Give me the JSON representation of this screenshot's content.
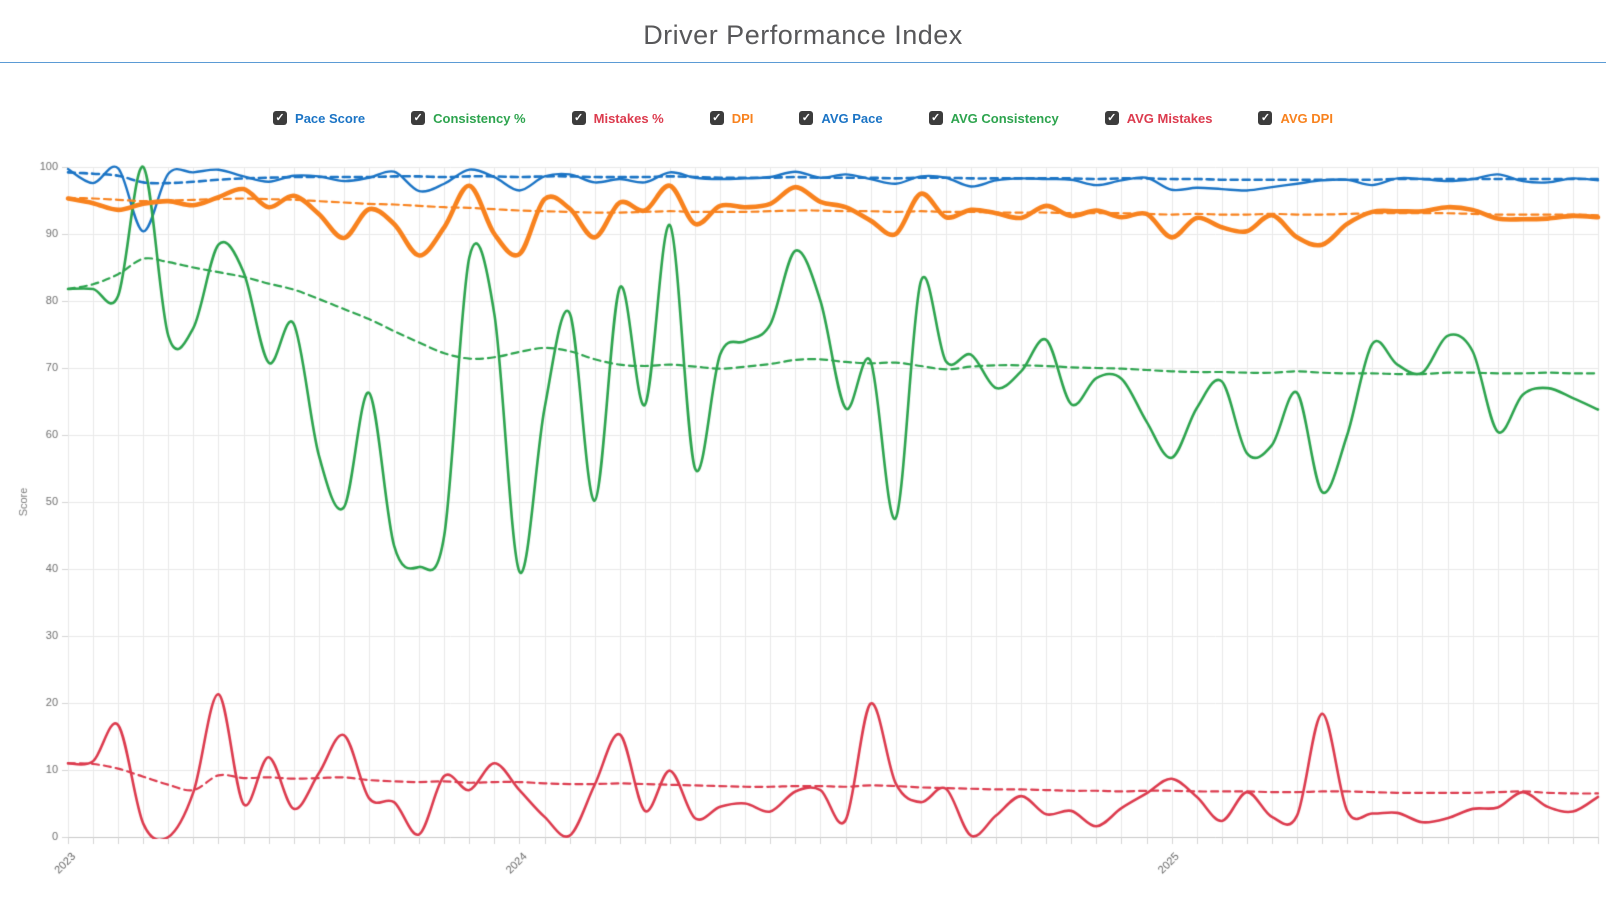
{
  "header": {
    "title": "Driver Performance Index"
  },
  "legend": {
    "items": [
      {
        "id": "pace-score",
        "label": "Pace Score",
        "checked": true
      },
      {
        "id": "consistency",
        "label": "Consistency %",
        "checked": true
      },
      {
        "id": "mistakes",
        "label": "Mistakes %",
        "checked": true
      },
      {
        "id": "dpi",
        "label": "DPI",
        "checked": true
      },
      {
        "id": "avg-pace",
        "label": "AVG Pace",
        "checked": true
      },
      {
        "id": "avg-consistency",
        "label": "AVG Consistency",
        "checked": true
      },
      {
        "id": "avg-mistakes",
        "label": "AVG Mistakes",
        "checked": true
      },
      {
        "id": "avg-dpi",
        "label": "AVG DPI",
        "checked": true
      }
    ],
    "checkmark": "✓"
  },
  "colors": {
    "blue": "#1b74c5",
    "green": "#2da44e",
    "red": "#dc3b4e",
    "orange": "#f8821e",
    "grid": "#e9e9e9",
    "axis_line": "#c8c8c8",
    "tick_mark": "#d5d5d5",
    "tick_text": "#707070",
    "axis_title": "#808080",
    "divider": "#5b9bd5",
    "checkbox_bg": "#3c3c3c",
    "title_text": "#58585a"
  },
  "y_axis": {
    "label": "Score",
    "ticks": [
      0,
      10,
      20,
      30,
      40,
      50,
      60,
      70,
      80,
      90,
      100
    ]
  },
  "x_axis": {
    "year_labels": [
      {
        "index": 0,
        "text": "2023"
      },
      {
        "index": 18,
        "text": "2024"
      },
      {
        "index": 44,
        "text": "2025"
      }
    ]
  },
  "chart_data": {
    "type": "line",
    "title": "Driver Performance Index",
    "xlabel": "",
    "ylabel": "Score",
    "ylim": [
      0,
      100
    ],
    "grid": true,
    "legend_position": "top",
    "n_points": 62,
    "x_tick_labels": {
      "0": "2023",
      "18": "2024",
      "44": "2025"
    },
    "series": [
      {
        "name": "Pace Score",
        "color": "#1b74c5",
        "style": "solid",
        "width": 2.4,
        "values": [
          99.7,
          97.6,
          99.8,
          90.4,
          99.0,
          99.2,
          99.6,
          98.6,
          97.8,
          98.7,
          98.6,
          97.9,
          98.4,
          99.3,
          96.4,
          97.5,
          99.6,
          98.5,
          96.5,
          98.6,
          98.9,
          97.7,
          98.2,
          97.7,
          99.2,
          98.4,
          98.2,
          98.3,
          98.5,
          99.3,
          98.4,
          98.9,
          98.2,
          97.5,
          98.6,
          98.4,
          97.1,
          98.0,
          98.3,
          98.2,
          98.1,
          97.3,
          98.0,
          98.4,
          96.6,
          96.9,
          96.7,
          96.5,
          97.0,
          97.5,
          98.0,
          98.1,
          97.3,
          98.3,
          98.2,
          97.9,
          98.2,
          98.9,
          97.9,
          97.7,
          98.3,
          98.0
        ]
      },
      {
        "name": "Consistency %",
        "color": "#2da44e",
        "style": "solid",
        "width": 2.6,
        "values": [
          81.8,
          81.8,
          80.8,
          100.0,
          74.8,
          76.0,
          88.4,
          84.3,
          70.8,
          76.6,
          57.0,
          49.2,
          66.3,
          43.5,
          40.3,
          45.0,
          86.5,
          78.0,
          39.6,
          64.0,
          78.2,
          50.2,
          82.0,
          64.5,
          91.3,
          55.0,
          72.0,
          74.0,
          76.5,
          87.5,
          80.0,
          64.0,
          71.0,
          47.6,
          82.9,
          71.0,
          72.0,
          67.0,
          69.5,
          74.2,
          64.6,
          68.5,
          68.4,
          62.0,
          56.6,
          64.0,
          68.0,
          57.3,
          58.5,
          66.3,
          51.5,
          60.0,
          73.6,
          70.5,
          69.3,
          74.8,
          72.5,
          60.5,
          66.0,
          67.0,
          65.5,
          63.8
        ]
      },
      {
        "name": "Mistakes %",
        "color": "#dc3b4e",
        "style": "solid",
        "width": 2.6,
        "values": [
          11.0,
          11.3,
          16.7,
          2.0,
          0.0,
          6.7,
          21.3,
          4.9,
          11.9,
          4.2,
          9.5,
          15.2,
          5.8,
          5.2,
          0.4,
          9.1,
          7.0,
          11.0,
          7.0,
          3.0,
          0.2,
          7.8,
          15.3,
          3.9,
          9.9,
          2.8,
          4.5,
          5.0,
          3.8,
          6.8,
          7.0,
          2.5,
          19.9,
          8.0,
          5.2,
          7.2,
          0.2,
          3.2,
          6.1,
          3.4,
          3.9,
          1.6,
          4.3,
          6.5,
          8.7,
          6.0,
          2.4,
          6.7,
          3.0,
          3.2,
          18.4,
          3.9,
          3.5,
          3.6,
          2.2,
          2.8,
          4.2,
          4.4,
          6.7,
          4.5,
          3.8,
          6.0
        ]
      },
      {
        "name": "DPI",
        "color": "#f8821e",
        "style": "solid",
        "width": 4.6,
        "values": [
          95.3,
          94.6,
          93.6,
          94.5,
          94.9,
          94.3,
          95.5,
          96.7,
          94.0,
          95.7,
          93.0,
          89.4,
          93.7,
          91.5,
          86.8,
          91.0,
          97.2,
          90.0,
          87.0,
          95.2,
          93.8,
          89.5,
          94.7,
          93.5,
          97.2,
          91.5,
          94.2,
          94.0,
          94.5,
          97.0,
          94.8,
          94.0,
          92.0,
          90.0,
          96.0,
          92.5,
          93.6,
          93.1,
          92.4,
          94.2,
          92.7,
          93.5,
          92.5,
          93.0,
          89.5,
          92.4,
          91.0,
          90.4,
          92.8,
          89.5,
          88.4,
          91.5,
          93.3,
          93.4,
          93.4,
          94.0,
          93.6,
          92.3,
          92.2,
          92.3,
          92.7,
          92.5
        ]
      },
      {
        "name": "AVG Pace",
        "color": "#1b74c5",
        "style": "dashed",
        "width": 2.6,
        "values": [
          99.2,
          99.0,
          98.7,
          97.7,
          97.6,
          97.8,
          98.1,
          98.3,
          98.4,
          98.5,
          98.5,
          98.5,
          98.5,
          98.6,
          98.6,
          98.5,
          98.6,
          98.6,
          98.5,
          98.6,
          98.6,
          98.5,
          98.5,
          98.5,
          98.6,
          98.5,
          98.4,
          98.4,
          98.4,
          98.5,
          98.4,
          98.4,
          98.4,
          98.3,
          98.4,
          98.4,
          98.3,
          98.3,
          98.3,
          98.3,
          98.3,
          98.2,
          98.3,
          98.3,
          98.2,
          98.2,
          98.1,
          98.1,
          98.1,
          98.1,
          98.1,
          98.1,
          98.1,
          98.2,
          98.2,
          98.2,
          98.2,
          98.2,
          98.2,
          98.2,
          98.2,
          98.2
        ]
      },
      {
        "name": "AVG Consistency",
        "color": "#2da44e",
        "style": "dashed",
        "width": 2.2,
        "values": [
          81.8,
          82.5,
          84.0,
          86.3,
          85.8,
          85.0,
          84.3,
          83.6,
          82.6,
          81.7,
          80.3,
          78.8,
          77.3,
          75.5,
          73.8,
          72.2,
          71.4,
          71.6,
          72.4,
          73.0,
          72.5,
          71.3,
          70.5,
          70.3,
          70.5,
          70.2,
          69.9,
          70.2,
          70.6,
          71.2,
          71.3,
          70.9,
          70.7,
          70.8,
          70.3,
          69.8,
          70.2,
          70.4,
          70.4,
          70.3,
          70.1,
          70.0,
          69.9,
          69.7,
          69.5,
          69.4,
          69.4,
          69.3,
          69.3,
          69.5,
          69.3,
          69.2,
          69.2,
          69.1,
          69.1,
          69.3,
          69.3,
          69.2,
          69.2,
          69.3,
          69.2,
          69.2
        ]
      },
      {
        "name": "AVG Mistakes",
        "color": "#dc3b4e",
        "style": "dashed",
        "width": 2.2,
        "values": [
          11.0,
          10.9,
          10.2,
          9.0,
          7.8,
          7.0,
          9.2,
          8.8,
          8.9,
          8.7,
          8.8,
          8.9,
          8.5,
          8.3,
          8.2,
          8.3,
          8.1,
          8.2,
          8.2,
          8.0,
          7.9,
          7.9,
          8.0,
          7.9,
          7.8,
          7.7,
          7.6,
          7.5,
          7.5,
          7.6,
          7.6,
          7.5,
          7.7,
          7.6,
          7.4,
          7.3,
          7.2,
          7.1,
          7.1,
          7.0,
          6.9,
          6.9,
          6.8,
          6.9,
          6.9,
          6.8,
          6.8,
          6.8,
          6.7,
          6.7,
          6.8,
          6.8,
          6.7,
          6.6,
          6.6,
          6.6,
          6.6,
          6.7,
          6.8,
          6.6,
          6.5,
          6.5
        ]
      },
      {
        "name": "AVG DPI",
        "color": "#f8821e",
        "style": "dashed",
        "width": 2.2,
        "values": [
          95.4,
          95.3,
          95.1,
          94.9,
          95.0,
          95.1,
          95.2,
          95.3,
          95.2,
          95.1,
          94.9,
          94.7,
          94.5,
          94.4,
          94.2,
          94.0,
          93.9,
          93.7,
          93.5,
          93.4,
          93.3,
          93.2,
          93.2,
          93.3,
          93.4,
          93.3,
          93.3,
          93.3,
          93.4,
          93.5,
          93.5,
          93.4,
          93.4,
          93.3,
          93.4,
          93.3,
          93.3,
          93.2,
          93.2,
          93.2,
          93.1,
          93.1,
          93.1,
          93.0,
          92.9,
          93.0,
          92.9,
          92.9,
          93.0,
          92.9,
          92.9,
          93.0,
          93.1,
          93.1,
          93.1,
          93.1,
          93.0,
          92.9,
          92.9,
          92.9,
          92.9,
          92.8
        ]
      }
    ]
  }
}
